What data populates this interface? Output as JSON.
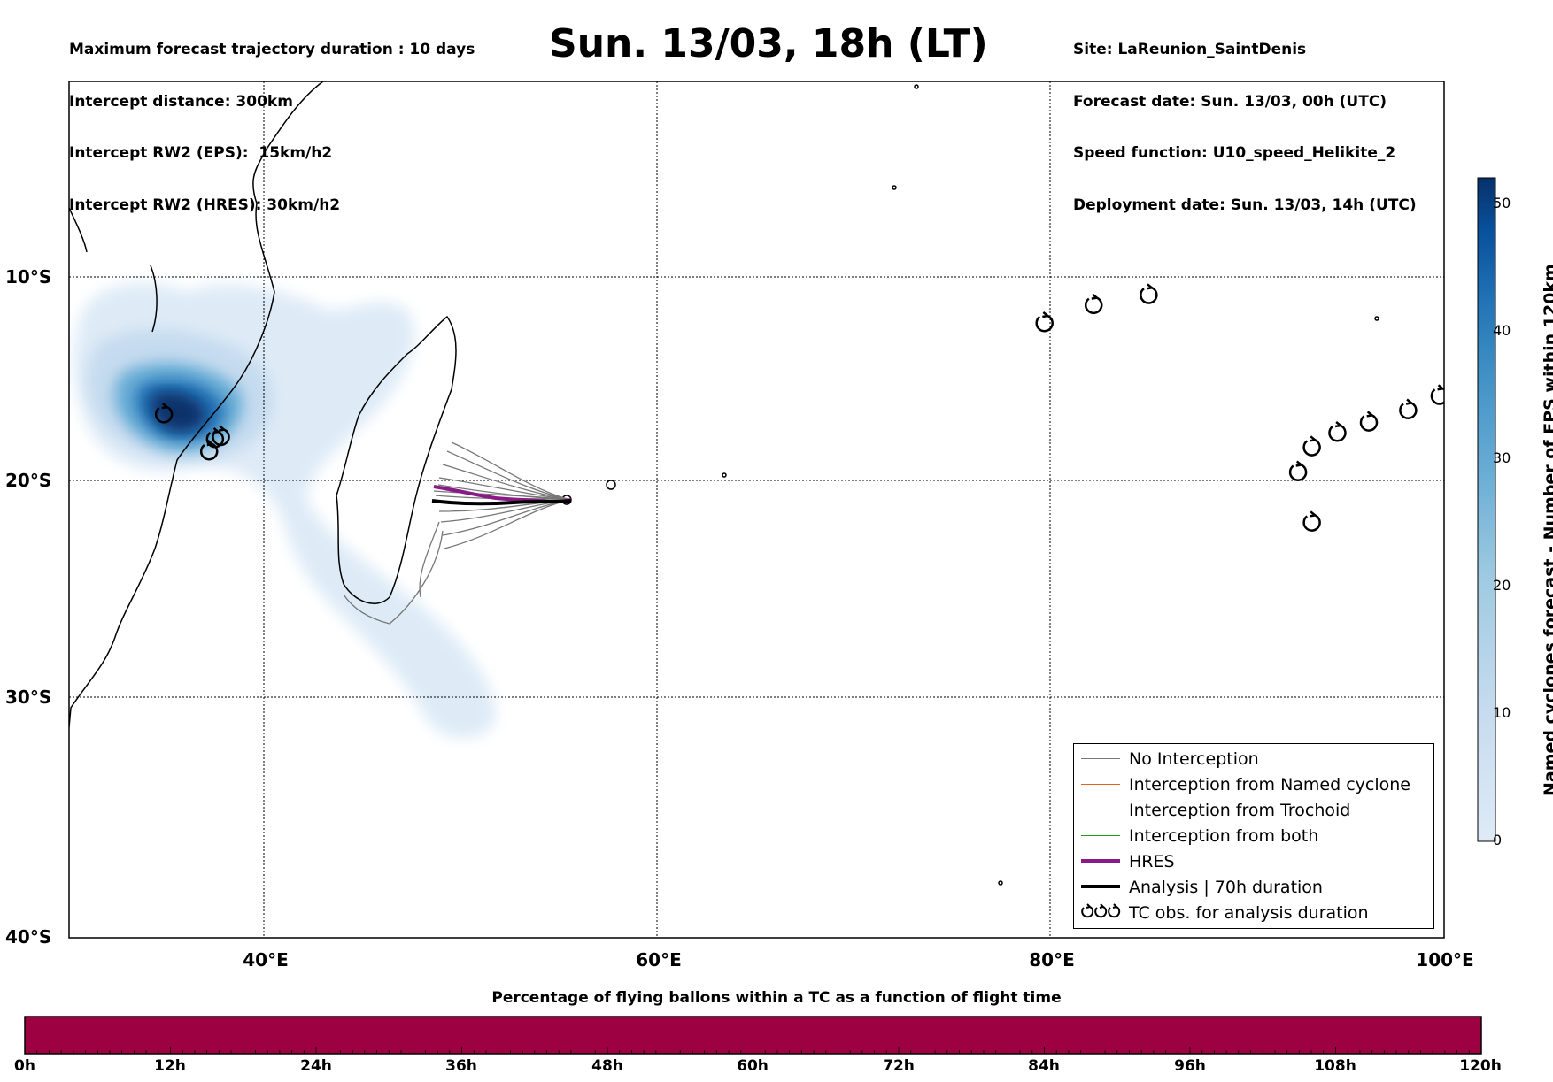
{
  "header_left": [
    "Maximum forecast trajectory duration : 10 days",
    "Intercept distance: 300km",
    "Intercept RW2 (EPS):  15km/h2",
    "Intercept RW2 (HRES): 30km/h2"
  ],
  "header_right": [
    "Site: LaReunion_SaintDenis",
    "Forecast date: Sun. 13/03, 00h (UTC)",
    "Speed function: U10_speed_Helikite_2",
    "Deployment date: Sun. 13/03, 14h (UTC)"
  ],
  "title": "Sun. 13/03, 18h (LT)",
  "map": {
    "lat_labels": [
      "10°S",
      "20°S",
      "30°S",
      "40°S"
    ],
    "lon_labels": [
      "40°E",
      "60°E",
      "80°E",
      "100°E"
    ],
    "lon_range": [
      30,
      100
    ],
    "lat_range": [
      -40,
      0
    ]
  },
  "legend": {
    "items": [
      {
        "label": "No Interception",
        "color": "#777777",
        "width": 1.5
      },
      {
        "label": "Interception from Named cyclone",
        "color": "#e8601c",
        "width": 1.5
      },
      {
        "label": "Interception from Trochoid",
        "color": "#808000",
        "width": 1.5
      },
      {
        "label": "Interception from both",
        "color": "#1a9e1a",
        "width": 1.5
      },
      {
        "label": "HRES",
        "color": "#8b1a89",
        "width": 4
      },
      {
        "label": "Analysis | 70h duration",
        "color": "#000000",
        "width": 4
      },
      {
        "label": "TC obs. for analysis duration",
        "color": "#000000",
        "width": 0,
        "symbol": "tc-icons"
      }
    ]
  },
  "colorbar": {
    "label": "Named cyclones forecast - Number of EPS within 120km",
    "ticks": [
      "0",
      "10",
      "20",
      "30",
      "40",
      "50"
    ],
    "max": 52,
    "colors": [
      "#deebf7",
      "#c6dbef",
      "#9ecae1",
      "#6baed6",
      "#4292c6",
      "#2171b5",
      "#08519c",
      "#08306b"
    ]
  },
  "bottom_bar": {
    "title": "Percentage of flying ballons within a TC as a function of flight time",
    "ticks": [
      "0h",
      "12h",
      "24h",
      "36h",
      "48h",
      "60h",
      "72h",
      "84h",
      "96h",
      "108h",
      "120h"
    ],
    "color": "#9e0142",
    "value_percent": 100
  },
  "tc_observations": [
    {
      "lon": 34.9,
      "lat": -16.8
    },
    {
      "lon": 37.5,
      "lon_note": "",
      "lat": -18.0
    },
    {
      "lon": 37.8,
      "lat": -17.9
    },
    {
      "lon": 37.2,
      "lat": -18.6
    },
    {
      "lon": 79.7,
      "lat": -12.3
    },
    {
      "lon": 82.2,
      "lat": -11.4
    },
    {
      "lon": 85.0,
      "lat": -10.9
    },
    {
      "lon": 92.6,
      "lat": -19.6
    },
    {
      "lon": 93.3,
      "lat": -18.4
    },
    {
      "lon": 94.6,
      "lat": -17.7
    },
    {
      "lon": 96.2,
      "lat": -17.2
    },
    {
      "lon": 98.2,
      "lat": -16.6
    },
    {
      "lon": 99.8,
      "lat": -15.9
    },
    {
      "lon": 93.3,
      "lat": -22.0
    }
  ]
}
